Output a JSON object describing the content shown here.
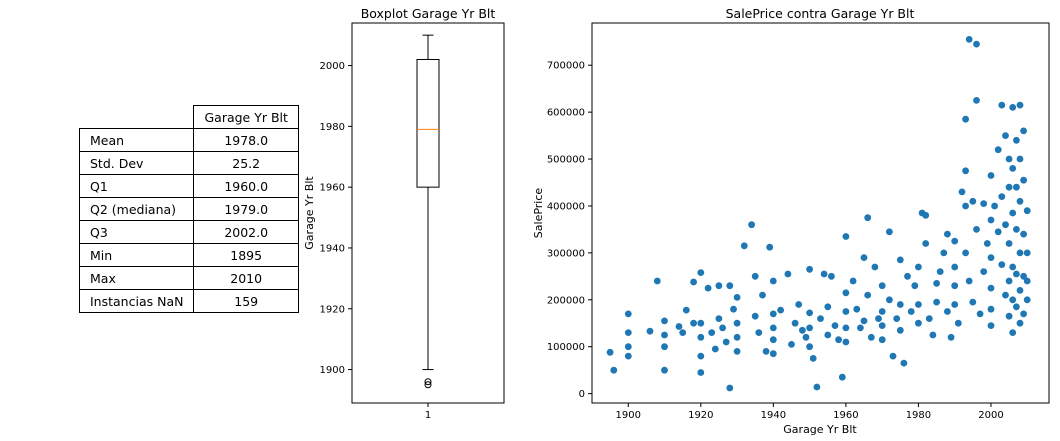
{
  "table": {
    "header": "Garage Yr Blt",
    "rows": [
      {
        "label": "Mean",
        "value": "1978.0"
      },
      {
        "label": "Std. Dev",
        "value": "25.2"
      },
      {
        "label": "Q1",
        "value": "1960.0"
      },
      {
        "label": "Q2 (mediana)",
        "value": "1979.0"
      },
      {
        "label": "Q3",
        "value": "2002.0"
      },
      {
        "label": "Min",
        "value": "1895"
      },
      {
        "label": "Max",
        "value": "2010"
      },
      {
        "label": "Instancias NaN",
        "value": "159"
      }
    ]
  },
  "chart_data": [
    {
      "type": "box",
      "title": "Boxplot Garage Yr Blt",
      "xlabel": "",
      "ylabel": "Garage Yr Blt",
      "categories": [
        "1"
      ],
      "ylim": [
        1889,
        2014
      ],
      "yticks": [
        1900,
        1920,
        1940,
        1960,
        1980,
        2000
      ],
      "q1": 1960,
      "median": 1979,
      "q3": 2002,
      "whisker_low": 1900,
      "whisker_high": 2010,
      "outliers": [
        1895,
        1896
      ],
      "colors": {
        "median": "#ff7f0e",
        "box": "#000000"
      }
    },
    {
      "type": "scatter",
      "title": "SalePrice contra Garage Yr Blt",
      "xlabel": "Garage Yr Blt",
      "ylabel": "SalePrice",
      "xlim": [
        1890,
        2016
      ],
      "ylim": [
        -20000,
        790000
      ],
      "xticks": [
        1900,
        1920,
        1940,
        1960,
        1980,
        2000
      ],
      "yticks": [
        0,
        100000,
        200000,
        300000,
        400000,
        500000,
        600000,
        700000
      ],
      "marker_color": "#1f77b4",
      "points": [
        [
          1895,
          88000
        ],
        [
          1896,
          50000
        ],
        [
          1900,
          170000
        ],
        [
          1900,
          130000
        ],
        [
          1900,
          100000
        ],
        [
          1900,
          80000
        ],
        [
          1906,
          133000
        ],
        [
          1908,
          240000
        ],
        [
          1910,
          155000
        ],
        [
          1910,
          125000
        ],
        [
          1910,
          100000
        ],
        [
          1910,
          50000
        ],
        [
          1914,
          143000
        ],
        [
          1915,
          130000
        ],
        [
          1916,
          178000
        ],
        [
          1918,
          238000
        ],
        [
          1918,
          150000
        ],
        [
          1920,
          258000
        ],
        [
          1920,
          150000
        ],
        [
          1920,
          120000
        ],
        [
          1920,
          80000
        ],
        [
          1920,
          45000
        ],
        [
          1922,
          225000
        ],
        [
          1923,
          130000
        ],
        [
          1924,
          95000
        ],
        [
          1925,
          230000
        ],
        [
          1925,
          160000
        ],
        [
          1926,
          140000
        ],
        [
          1927,
          110000
        ],
        [
          1928,
          12000
        ],
        [
          1928,
          230000
        ],
        [
          1929,
          180000
        ],
        [
          1930,
          205000
        ],
        [
          1930,
          150000
        ],
        [
          1930,
          120000
        ],
        [
          1930,
          90000
        ],
        [
          1932,
          315000
        ],
        [
          1934,
          360000
        ],
        [
          1935,
          250000
        ],
        [
          1935,
          165000
        ],
        [
          1936,
          130000
        ],
        [
          1937,
          210000
        ],
        [
          1938,
          90000
        ],
        [
          1939,
          312000
        ],
        [
          1940,
          240000
        ],
        [
          1940,
          170000
        ],
        [
          1940,
          140000
        ],
        [
          1940,
          115000
        ],
        [
          1940,
          85000
        ],
        [
          1942,
          178000
        ],
        [
          1944,
          255000
        ],
        [
          1945,
          105000
        ],
        [
          1946,
          150000
        ],
        [
          1947,
          190000
        ],
        [
          1948,
          135000
        ],
        [
          1949,
          120000
        ],
        [
          1950,
          265000
        ],
        [
          1950,
          172000
        ],
        [
          1950,
          140000
        ],
        [
          1950,
          100000
        ],
        [
          1951,
          75000
        ],
        [
          1952,
          14000
        ],
        [
          1953,
          160000
        ],
        [
          1954,
          255000
        ],
        [
          1955,
          185000
        ],
        [
          1955,
          125000
        ],
        [
          1956,
          250000
        ],
        [
          1957,
          145000
        ],
        [
          1958,
          115000
        ],
        [
          1959,
          35000
        ],
        [
          1960,
          335000
        ],
        [
          1960,
          215000
        ],
        [
          1960,
          175000
        ],
        [
          1960,
          140000
        ],
        [
          1960,
          110000
        ],
        [
          1962,
          240000
        ],
        [
          1963,
          180000
        ],
        [
          1964,
          140000
        ],
        [
          1965,
          290000
        ],
        [
          1965,
          155000
        ],
        [
          1966,
          375000
        ],
        [
          1966,
          210000
        ],
        [
          1967,
          120000
        ],
        [
          1968,
          270000
        ],
        [
          1969,
          160000
        ],
        [
          1970,
          230000
        ],
        [
          1970,
          175000
        ],
        [
          1970,
          145000
        ],
        [
          1970,
          115000
        ],
        [
          1972,
          345000
        ],
        [
          1972,
          200000
        ],
        [
          1973,
          80000
        ],
        [
          1974,
          160000
        ],
        [
          1975,
          285000
        ],
        [
          1975,
          190000
        ],
        [
          1975,
          135000
        ],
        [
          1976,
          65000
        ],
        [
          1977,
          250000
        ],
        [
          1978,
          175000
        ],
        [
          1979,
          230000
        ],
        [
          1980,
          270000
        ],
        [
          1980,
          190000
        ],
        [
          1980,
          150000
        ],
        [
          1981,
          385000
        ],
        [
          1982,
          380000
        ],
        [
          1982,
          320000
        ],
        [
          1983,
          160000
        ],
        [
          1984,
          125000
        ],
        [
          1985,
          235000
        ],
        [
          1985,
          195000
        ],
        [
          1986,
          260000
        ],
        [
          1987,
          300000
        ],
        [
          1988,
          340000
        ],
        [
          1988,
          175000
        ],
        [
          1989,
          120000
        ],
        [
          1990,
          325000
        ],
        [
          1990,
          270000
        ],
        [
          1990,
          230000
        ],
        [
          1990,
          190000
        ],
        [
          1991,
          150000
        ],
        [
          1992,
          430000
        ],
        [
          1993,
          585000
        ],
        [
          1993,
          475000
        ],
        [
          1993,
          400000
        ],
        [
          1993,
          300000
        ],
        [
          1994,
          755000
        ],
        [
          1994,
          240000
        ],
        [
          1995,
          410000
        ],
        [
          1995,
          195000
        ],
        [
          1996,
          745000
        ],
        [
          1996,
          625000
        ],
        [
          1996,
          350000
        ],
        [
          1997,
          170000
        ],
        [
          1998,
          405000
        ],
        [
          1998,
          260000
        ],
        [
          1999,
          320000
        ],
        [
          2000,
          465000
        ],
        [
          2000,
          370000
        ],
        [
          2000,
          290000
        ],
        [
          2000,
          225000
        ],
        [
          2000,
          180000
        ],
        [
          2000,
          145000
        ],
        [
          2001,
          400000
        ],
        [
          2002,
          520000
        ],
        [
          2002,
          345000
        ],
        [
          2003,
          615000
        ],
        [
          2003,
          420000
        ],
        [
          2003,
          275000
        ],
        [
          2004,
          550000
        ],
        [
          2004,
          360000
        ],
        [
          2004,
          210000
        ],
        [
          2005,
          500000
        ],
        [
          2005,
          440000
        ],
        [
          2005,
          320000
        ],
        [
          2005,
          240000
        ],
        [
          2005,
          165000
        ],
        [
          2006,
          610000
        ],
        [
          2006,
          480000
        ],
        [
          2006,
          385000
        ],
        [
          2006,
          270000
        ],
        [
          2006,
          200000
        ],
        [
          2006,
          130000
        ],
        [
          2007,
          540000
        ],
        [
          2007,
          440000
        ],
        [
          2007,
          350000
        ],
        [
          2007,
          255000
        ],
        [
          2007,
          185000
        ],
        [
          2008,
          615000
        ],
        [
          2008,
          500000
        ],
        [
          2008,
          410000
        ],
        [
          2008,
          300000
        ],
        [
          2008,
          220000
        ],
        [
          2008,
          150000
        ],
        [
          2009,
          560000
        ],
        [
          2009,
          455000
        ],
        [
          2009,
          340000
        ],
        [
          2009,
          250000
        ],
        [
          2009,
          170000
        ],
        [
          2010,
          390000
        ],
        [
          2010,
          300000
        ],
        [
          2010,
          240000
        ],
        [
          2010,
          200000
        ]
      ]
    }
  ]
}
